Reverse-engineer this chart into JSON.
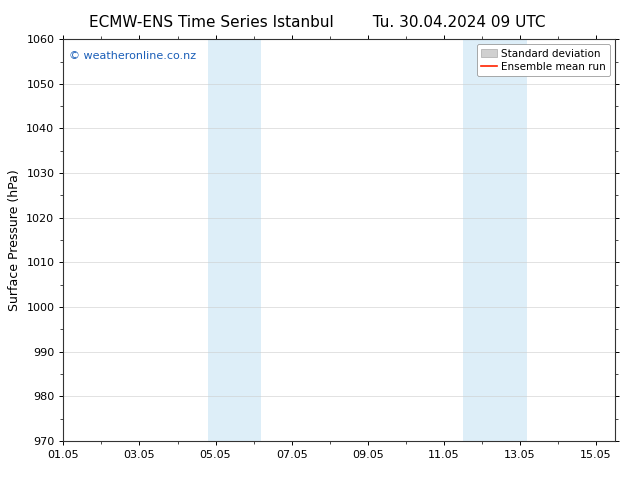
{
  "title_left": "ECMW-ENS Time Series Istanbul",
  "title_right": "Tu. 30.04.2024 09 UTC",
  "ylabel": "Surface Pressure (hPa)",
  "ylim": [
    970,
    1060
  ],
  "yticks": [
    970,
    980,
    990,
    1000,
    1010,
    1020,
    1030,
    1040,
    1050,
    1060
  ],
  "xlim": [
    0,
    14.5
  ],
  "xtick_labels": [
    "01.05",
    "03.05",
    "05.05",
    "07.05",
    "09.05",
    "11.05",
    "13.05",
    "15.05"
  ],
  "xtick_positions": [
    0,
    2,
    4,
    6,
    8,
    10,
    12,
    14
  ],
  "shade_bands": [
    {
      "x_start": 3.8,
      "x_end": 5.2,
      "color": "#ddeef8"
    },
    {
      "x_start": 10.5,
      "x_end": 12.2,
      "color": "#ddeef8"
    }
  ],
  "watermark_text": "© weatheronline.co.nz",
  "watermark_color": "#1a5eb8",
  "legend_std_color": "#d0d0d0",
  "legend_std_edge": "#aaaaaa",
  "legend_mean_color": "#ff2200",
  "background_color": "#ffffff",
  "plot_bg_color": "#ffffff",
  "grid_color": "#cccccc",
  "spine_color": "#333333",
  "title_fontsize": 11,
  "ylabel_fontsize": 9,
  "tick_fontsize": 8,
  "watermark_fontsize": 8,
  "legend_fontsize": 7.5
}
